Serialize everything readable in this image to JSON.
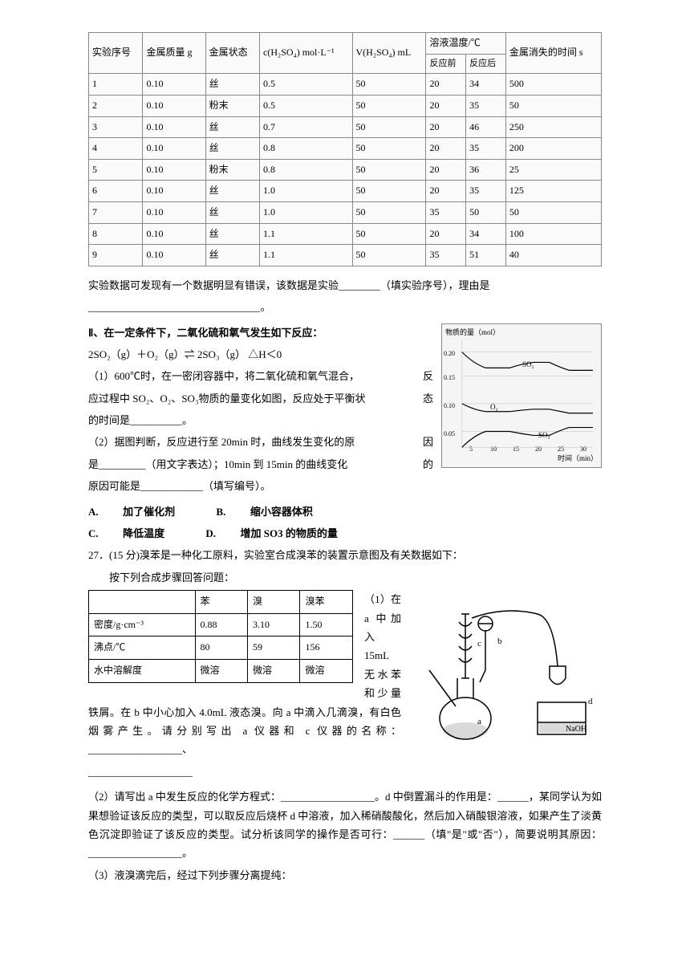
{
  "table1": {
    "headers_row1": [
      "实验序号",
      "金属质量 g",
      "金属状态",
      "c(H₂SO₄) mol·L⁻¹",
      "V(H₂SO₄) mL",
      "溶液温度/℃",
      "",
      "金属消失的时间 s"
    ],
    "sub_before": "反应前",
    "sub_after": "反应后",
    "rows": [
      [
        "1",
        "0.10",
        "丝",
        "0.5",
        "50",
        "20",
        "34",
        "500"
      ],
      [
        "2",
        "0.10",
        "粉末",
        "0.5",
        "50",
        "20",
        "35",
        "50"
      ],
      [
        "3",
        "0.10",
        "丝",
        "0.7",
        "50",
        "20",
        "46",
        "250"
      ],
      [
        "4",
        "0.10",
        "丝",
        "0.8",
        "50",
        "20",
        "35",
        "200"
      ],
      [
        "5",
        "0.10",
        "粉末",
        "0.8",
        "50",
        "20",
        "36",
        "25"
      ],
      [
        "6",
        "0.10",
        "丝",
        "1.0",
        "50",
        "20",
        "35",
        "125"
      ],
      [
        "7",
        "0.10",
        "丝",
        "1.0",
        "50",
        "35",
        "50",
        "50"
      ],
      [
        "8",
        "0.10",
        "丝",
        "1.1",
        "50",
        "20",
        "34",
        "100"
      ],
      [
        "9",
        "0.10",
        "丝",
        "1.1",
        "50",
        "35",
        "51",
        "40"
      ]
    ]
  },
  "p1": "实验数据可发现有一个数据明显有错误，该数据是实验________（填实验序号），理由是",
  "p1_line2": "_________________________________。",
  "section2": {
    "heading": "Ⅱ、在一定条件下，二氧化硫和氧气发生如下反应：",
    "equation": "2SO₂（g）＋O₂（g）⇌ 2SO₃（g）     △H＜0",
    "q1a": "（1）600℃时，在一密闭容器中，将二氧化硫和氧气混合，",
    "q1a_right": "反",
    "q1b": "应过程中 SO₂、O₂、SO₃物质的量变化如图，反应处于平衡状",
    "q1b_right": "态",
    "q1c": "的时间是__________。",
    "q2a": "（2）据图判断，反应进行至 20min 时，曲线发生变化的原",
    "q2a_right": "因",
    "q2b": "是_________（用文字表达）；10min 到 15min 的曲线变化",
    "q2b_right": "的",
    "q2c": "原因可能是____________（填写编号）。",
    "optA_label": "A.",
    "optA": "加了催化剂",
    "optB_label": "B.",
    "optB": "缩小容器体积",
    "optC_label": "C.",
    "optC": "降低温度",
    "optD_label": "D.",
    "optD": "增加 SO3 的物质的量"
  },
  "chart": {
    "ylabel": "物质的量（mol）",
    "xlabel": "时间（min）",
    "yticks": [
      "0.05",
      "0.10",
      "0.15",
      "0.20"
    ],
    "xticks": [
      "5",
      "10",
      "15",
      "20",
      "25",
      "30"
    ],
    "series": [
      "SO₂",
      "O₂",
      "SO₃"
    ]
  },
  "q27": {
    "stem": "27．(15 分)溴苯是一种化工原料，实验室合成溴苯的装置示意图及有关数据如下：",
    "sub": "按下列合成步骤回答问题：",
    "table": {
      "cols": [
        "",
        "苯",
        "溴",
        "溴苯"
      ],
      "rows": [
        [
          "密度/g·cm⁻³",
          "0.88",
          "3.10",
          "1.50"
        ],
        [
          "沸点/℃",
          "80",
          "59",
          "156"
        ],
        [
          "水中溶解度",
          "微溶",
          "微溶",
          "微溶"
        ]
      ]
    },
    "p1": "（1）在 a 中加入 15mL 无水苯和少量铁屑。在 b 中小心加入 4.0mL 液态溴。向 a 中滴入几滴溴，有白色烟雾产生。请分别写出 a 仪器和 c 仪器的名称：__________________、",
    "p1_line2": "____________________",
    "p2": "（2）请写出 a 中发生反应的化学方程式：__________________。d 中倒置漏斗的作用是：______，某同学认为如果想验证该反应的类型，可以取反应后烧杯 d 中溶液，加入稀硝酸酸化，然后加入硝酸银溶液，如果产生了淡黄色沉淀即验证了该反应的类型。试分析该同学的操作是否可行：______（填\"是\"或\"否\"），简要说明其原因：__________________。",
    "p3": "（3）液溴滴完后，经过下列步骤分离提纯："
  },
  "apparatus": {
    "labels": {
      "a": "a",
      "b": "b",
      "c": "c",
      "d": "d",
      "naoh": "NaOH"
    }
  }
}
